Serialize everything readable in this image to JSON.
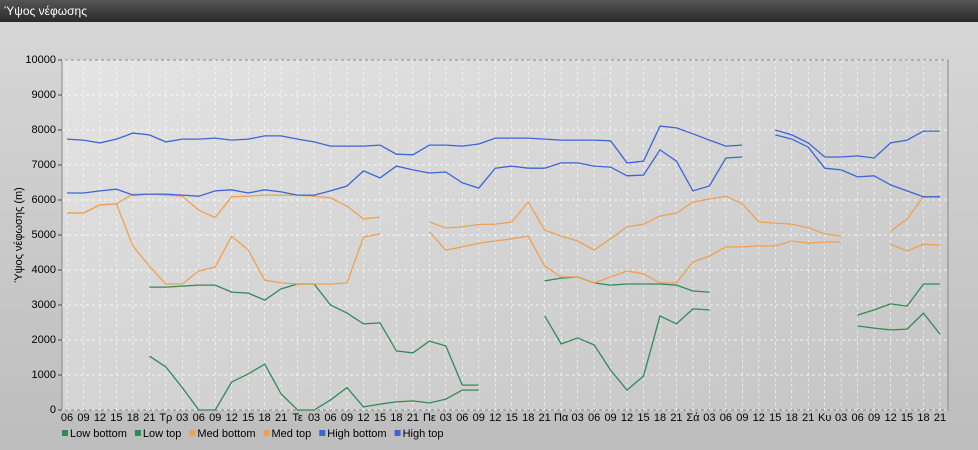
{
  "chart_data": {
    "type": "line",
    "title": "Ύψος νέφωσης",
    "y_label": "Ύψος νέφωσης (m)",
    "categories": [
      "06",
      "09",
      "12",
      "15",
      "18",
      "21",
      "Τρ",
      "03",
      "06",
      "09",
      "12",
      "15",
      "18",
      "21",
      "Τε",
      "03",
      "06",
      "09",
      "12",
      "15",
      "18",
      "21",
      "Πε",
      "03",
      "06",
      "09",
      "12",
      "15",
      "18",
      "21",
      "Πα",
      "03",
      "06",
      "09",
      "12",
      "15",
      "18",
      "21",
      "Σά",
      "03",
      "06",
      "09",
      "12",
      "15",
      "18",
      "21",
      "Κυ",
      "03",
      "06",
      "09",
      "12",
      "15",
      "18",
      "21"
    ],
    "ylim": [
      0,
      10000
    ],
    "yticks": [
      0,
      1000,
      2000,
      3000,
      4000,
      5000,
      6000,
      7000,
      8000,
      9000,
      10000
    ],
    "grid": true,
    "series": [
      {
        "name": "Low bottom",
        "color": "#2e8b57",
        "values": [
          null,
          null,
          null,
          null,
          null,
          1540,
          1230,
          640,
          0,
          0,
          800,
          1030,
          1310,
          460,
          0,
          0,
          290,
          640,
          90,
          170,
          230,
          260,
          200,
          310,
          570,
          570,
          null,
          null,
          null,
          2690,
          1890,
          2060,
          1860,
          1140,
          570,
          970,
          2690,
          2460,
          2890,
          2860,
          null,
          null,
          null,
          null,
          null,
          null,
          null,
          null,
          2400,
          2340,
          2290,
          2310,
          2770,
          2170
        ]
      },
      {
        "name": "Low top",
        "color": "#2e8b57",
        "values": [
          null,
          null,
          null,
          null,
          null,
          3510,
          3510,
          3540,
          3570,
          3570,
          3370,
          3340,
          3140,
          3460,
          3600,
          3600,
          3000,
          2770,
          2460,
          2490,
          1690,
          1630,
          1970,
          1830,
          710,
          710,
          null,
          null,
          null,
          3690,
          3770,
          3800,
          3630,
          3570,
          3600,
          3600,
          3600,
          3570,
          3400,
          3370,
          null,
          null,
          null,
          null,
          null,
          null,
          null,
          null,
          2710,
          2860,
          3030,
          2970,
          3600,
          3600
        ]
      },
      {
        "name": "Med bottom",
        "color": "#f0a050",
        "values": [
          5630,
          5630,
          5860,
          5890,
          4690,
          4110,
          3600,
          3600,
          3970,
          4090,
          4970,
          4570,
          3710,
          3630,
          3600,
          3600,
          3600,
          3630,
          4940,
          5030,
          null,
          null,
          5090,
          4570,
          4660,
          4770,
          4830,
          4890,
          4970,
          4110,
          3800,
          3800,
          3630,
          3800,
          3970,
          3890,
          3630,
          3630,
          4230,
          4400,
          4660,
          4660,
          4690,
          4690,
          4830,
          4770,
          4800,
          4800,
          null,
          null,
          4740,
          4540,
          4740,
          4710
        ]
      },
      {
        "name": "Med top",
        "color": "#f0a050",
        "values": [
          5630,
          5630,
          5860,
          5890,
          6170,
          6170,
          6140,
          6110,
          5710,
          5500,
          6090,
          6110,
          6140,
          6140,
          6140,
          6110,
          6060,
          5830,
          5460,
          5510,
          null,
          null,
          5370,
          5200,
          5230,
          5300,
          5310,
          5370,
          5940,
          5140,
          4970,
          4830,
          4570,
          4890,
          5230,
          5310,
          5540,
          5630,
          5940,
          6030,
          6110,
          5890,
          5370,
          5340,
          5310,
          5210,
          5030,
          4970,
          null,
          null,
          5110,
          5460,
          6090,
          6110
        ]
      },
      {
        "name": "High bottom",
        "color": "#3c64d8",
        "values": [
          6200,
          6200,
          6260,
          6310,
          6140,
          6170,
          6170,
          6140,
          6110,
          6260,
          6290,
          6200,
          6290,
          6230,
          6140,
          6140,
          6260,
          6400,
          6830,
          6630,
          6970,
          6860,
          6770,
          6800,
          6490,
          6340,
          6910,
          6970,
          6910,
          6910,
          7060,
          7060,
          6970,
          6940,
          6690,
          6710,
          7430,
          7110,
          6260,
          6400,
          7200,
          7230,
          null,
          7860,
          7740,
          7510,
          6910,
          6860,
          6660,
          6690,
          6430,
          6260,
          6090,
          6090
        ]
      },
      {
        "name": "High top",
        "color": "#3c64d8",
        "values": [
          7740,
          7710,
          7630,
          7740,
          7910,
          7860,
          7660,
          7740,
          7740,
          7770,
          7710,
          7740,
          7830,
          7830,
          7740,
          7660,
          7540,
          7540,
          7540,
          7570,
          7310,
          7290,
          7570,
          7570,
          7540,
          7600,
          7770,
          7770,
          7770,
          7740,
          7710,
          7710,
          7710,
          7690,
          7060,
          7110,
          8110,
          8060,
          7890,
          7710,
          7540,
          7570,
          null,
          8000,
          7860,
          7630,
          7230,
          7230,
          7260,
          7200,
          7630,
          7710,
          7970,
          7970
        ]
      }
    ]
  }
}
